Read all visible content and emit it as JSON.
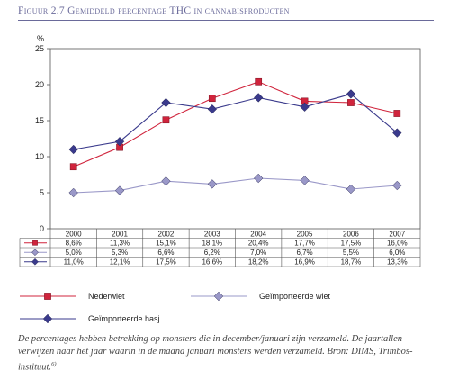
{
  "figure": {
    "title": "Figuur 2.7 Gemiddeld percentage THC in cannabisproducten",
    "caption": "De percentages hebben betrekking op monsters die in december/januari zijn verzameld. De jaartallen verwijzen naar het jaar waarin in de maand januari monsters werden verzameld. Bron: DIMS, Trimbos-instituut.",
    "caption_sup": "6)"
  },
  "chart_data": {
    "type": "line",
    "ylabel": "%",
    "ylim": [
      0,
      25
    ],
    "yticks": [
      "0",
      "5",
      "10",
      "15",
      "20",
      "25"
    ],
    "categories": [
      "2000",
      "2001",
      "2002",
      "2003",
      "2004",
      "2005",
      "2006",
      "2007"
    ],
    "grid": false,
    "legend_position": "bottom",
    "series": [
      {
        "name": "Nederwiet",
        "color": "#d0243c",
        "marker": "square",
        "values": [
          8.6,
          11.3,
          15.1,
          18.1,
          20.4,
          17.7,
          17.5,
          16.0
        ],
        "labels": [
          "8,6%",
          "11,3%",
          "15,1%",
          "18,1%",
          "20,4%",
          "17,7%",
          "17,5%",
          "16,0%"
        ]
      },
      {
        "name": "Geïmporteerde wiet",
        "color": "#9a98c8",
        "marker": "diamond",
        "values": [
          5.0,
          5.3,
          6.6,
          6.2,
          7.0,
          6.7,
          5.5,
          6.0
        ],
        "labels": [
          "5,0%",
          "5,3%",
          "6,6%",
          "6,2%",
          "7,0%",
          "6,7%",
          "5,5%",
          "6,0%"
        ]
      },
      {
        "name": "Geïmporteerde hasj",
        "color": "#3a3a8c",
        "marker": "diamond",
        "values": [
          11.0,
          12.1,
          17.5,
          16.6,
          18.2,
          16.9,
          18.7,
          13.3
        ],
        "labels": [
          "11,0%",
          "12,1%",
          "17,5%",
          "16,6%",
          "18,2%",
          "16,9%",
          "18,7%",
          "13,3%"
        ]
      }
    ]
  }
}
